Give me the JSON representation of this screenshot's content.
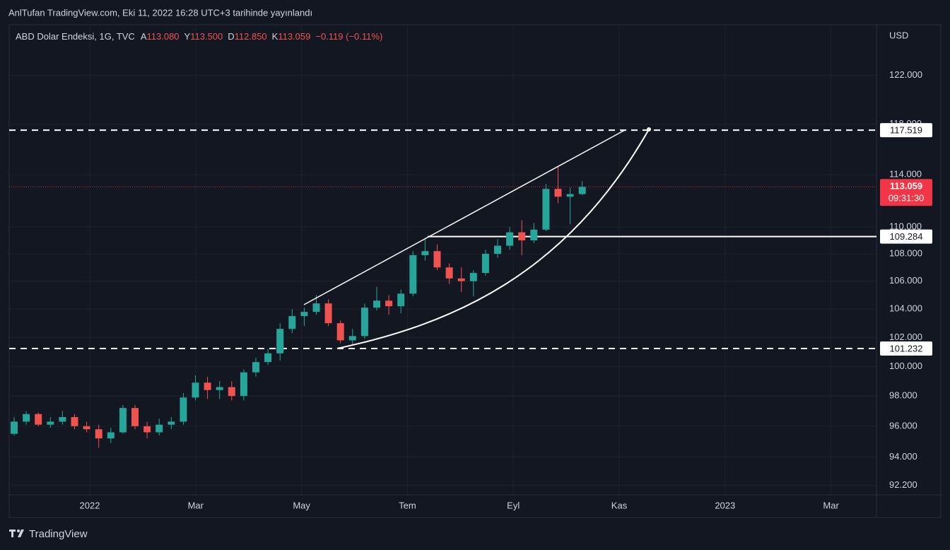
{
  "header": {
    "published": "AnlTufan TradingView.com, Eki 11, 2022 16:28 UTC+3 tarihinde yayınlandı"
  },
  "legend": {
    "symbol": "ABD Dolar Endeksi, 1G, TVC",
    "open_label": "A",
    "open": "113.080",
    "high_label": "Y",
    "high": "113.500",
    "low_label": "D",
    "low": "112.850",
    "close_label": "K",
    "close": "113.059",
    "change": "−0.119 (−0.11%)"
  },
  "chart_data": {
    "type": "candlestick",
    "currency": "USD",
    "log_scale": true,
    "grid": true,
    "up_color": "#26a69a",
    "down_color": "#ef5350",
    "ylim": [
      91.6,
      126.3
    ],
    "yticks": [
      {
        "value": 92.2,
        "label": "92.200"
      },
      {
        "value": 94,
        "label": "94.000"
      },
      {
        "value": 96,
        "label": "96.000"
      },
      {
        "value": 98,
        "label": "98.000"
      },
      {
        "value": 100,
        "label": "100.000"
      },
      {
        "value": 102,
        "label": "102.000"
      },
      {
        "value": 104,
        "label": "104.000"
      },
      {
        "value": 106,
        "label": "106.000"
      },
      {
        "value": 108,
        "label": "108.000"
      },
      {
        "value": 110,
        "label": "110.000"
      },
      {
        "value": 114,
        "label": "114.000"
      },
      {
        "value": 118,
        "label": "118.000"
      },
      {
        "value": 122,
        "label": "122.000"
      }
    ],
    "xticks": [
      {
        "value": "2022-01",
        "label": "2022"
      },
      {
        "value": "2022-03",
        "label": "Mar"
      },
      {
        "value": "2022-05",
        "label": "May"
      },
      {
        "value": "2022-07",
        "label": "Tem"
      },
      {
        "value": "2022-09",
        "label": "Eyl"
      },
      {
        "value": "2022-11",
        "label": "Kas"
      },
      {
        "value": "2023-01",
        "label": "2023"
      },
      {
        "value": "2023-03",
        "label": "Mar"
      }
    ],
    "open": [
      95.5,
      96.3,
      96.8,
      96.1,
      96.3,
      96.6,
      96.0,
      95.8,
      95.2,
      95.6,
      97.2,
      96.0,
      95.6,
      96.1,
      96.3,
      97.9,
      98.9,
      98.4,
      98.6,
      98.0,
      99.6,
      100.3,
      100.9,
      102.6,
      103.5,
      103.8,
      104.4,
      103.0,
      101.8,
      102.1,
      104.1,
      104.6,
      104.2,
      105.1,
      107.9,
      108.2,
      107.0,
      106.2,
      106.0,
      106.6,
      108.0,
      108.6,
      109.6,
      109.0,
      109.8,
      112.9,
      112.3,
      112.5
    ],
    "high": [
      96.6,
      97.0,
      96.9,
      96.6,
      97.0,
      96.8,
      96.3,
      96.1,
      95.9,
      97.4,
      97.4,
      96.3,
      96.5,
      96.6,
      98.2,
      99.4,
      99.3,
      99.0,
      99.0,
      99.8,
      100.6,
      101.2,
      103.0,
      104.0,
      104.1,
      105.0,
      104.7,
      103.2,
      102.6,
      104.4,
      105.6,
      105.0,
      105.4,
      108.2,
      109.2,
      108.7,
      107.3,
      107.0,
      106.8,
      108.3,
      109.1,
      110.0,
      110.5,
      110.3,
      113.3,
      114.7,
      113.0,
      113.5
    ],
    "low": [
      95.4,
      96.1,
      96.0,
      95.9,
      96.1,
      95.8,
      95.6,
      94.6,
      94.9,
      95.5,
      95.8,
      95.2,
      95.4,
      95.8,
      96.1,
      97.7,
      97.8,
      97.8,
      97.7,
      97.7,
      99.3,
      100.1,
      100.4,
      102.3,
      102.8,
      103.6,
      102.8,
      101.6,
      101.5,
      101.9,
      103.9,
      103.6,
      103.7,
      104.9,
      107.5,
      106.8,
      105.8,
      105.2,
      104.9,
      106.4,
      107.7,
      108.3,
      107.9,
      108.8,
      109.7,
      111.8,
      110.2,
      112.4
    ],
    "close": [
      96.3,
      96.8,
      96.1,
      96.3,
      96.6,
      96.0,
      95.8,
      95.2,
      95.6,
      97.2,
      96.0,
      95.6,
      96.1,
      96.3,
      97.9,
      98.9,
      98.4,
      98.6,
      98.0,
      99.6,
      100.3,
      100.9,
      102.6,
      103.5,
      103.8,
      104.4,
      103.0,
      101.8,
      102.1,
      104.1,
      104.6,
      104.2,
      105.1,
      107.9,
      108.2,
      107.0,
      106.2,
      106.0,
      106.6,
      108.0,
      108.6,
      109.6,
      109.0,
      109.8,
      112.9,
      112.3,
      112.5,
      113.059
    ],
    "levels": [
      {
        "value": 117.519,
        "style": "dashed"
      },
      {
        "value": 109.284,
        "style": "solid"
      },
      {
        "value": 101.232,
        "style": "dashed"
      }
    ],
    "last_price": {
      "value": 113.059,
      "countdown": "09:31:30",
      "color": "#f23645"
    }
  },
  "footer": {
    "brand": "TradingView"
  }
}
